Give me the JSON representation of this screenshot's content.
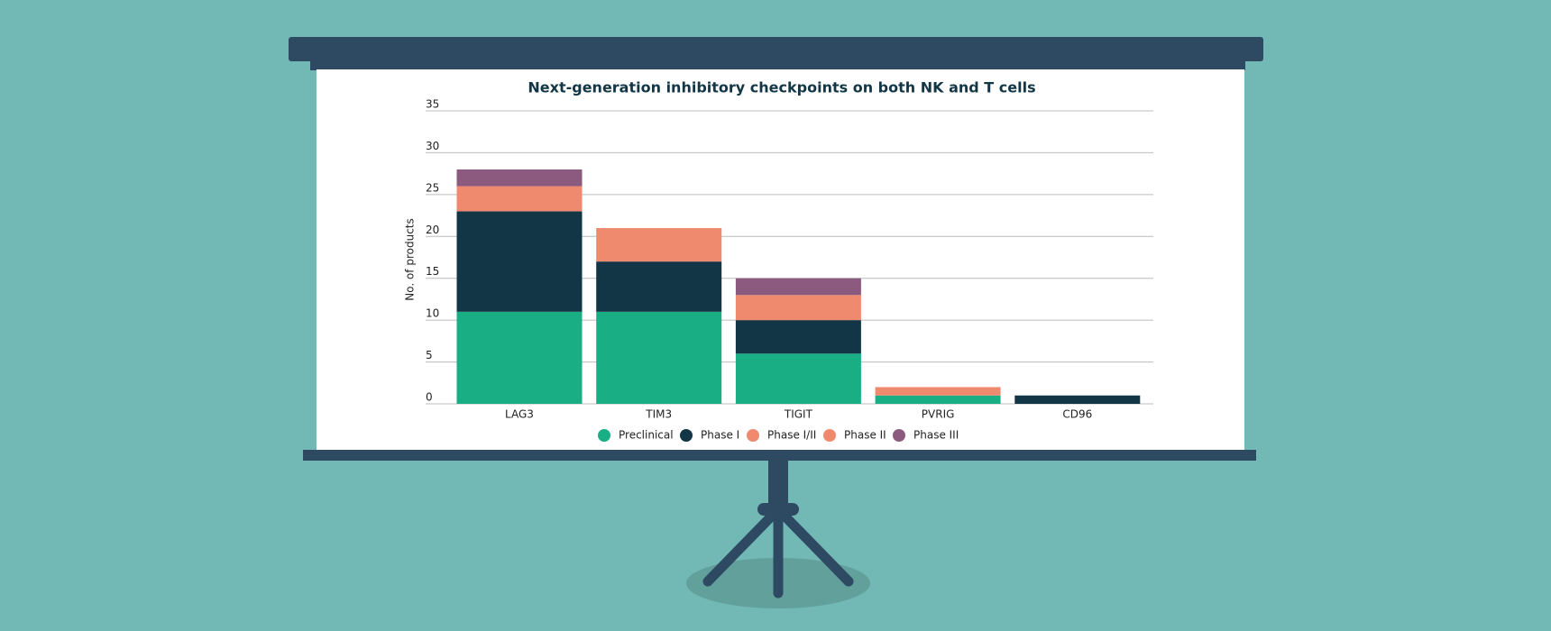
{
  "chart_data": {
    "type": "stacked_bar",
    "title": "Next-generation inhibitory checkpoints on both NK and T cells",
    "y_label": "No. of products",
    "categories": [
      "LAG3",
      "TIM3",
      "TIGIT",
      "PVRIG",
      "CD96"
    ],
    "series": [
      {
        "name": "Preclinical",
        "color": "#1aae85",
        "values": [
          11,
          11,
          6,
          1,
          0
        ]
      },
      {
        "name": "Phase I",
        "color": "#123646",
        "values": [
          12,
          6,
          4,
          0,
          1
        ]
      },
      {
        "name": "Phase I/II",
        "color": "#ef8a6e",
        "values": [
          0,
          0,
          0,
          0,
          0
        ]
      },
      {
        "name": "Phase II",
        "color": "#ef8a6e",
        "values": [
          3,
          4,
          3,
          1,
          0
        ]
      },
      {
        "name": "Phase III",
        "color": "#8b5a7e",
        "values": [
          2,
          0,
          2,
          0,
          0
        ]
      }
    ],
    "ylim": [
      0,
      35
    ],
    "yticks": [
      0,
      5,
      10,
      15,
      20,
      25,
      30,
      35
    ],
    "grid": true,
    "legend": "bottom"
  }
}
